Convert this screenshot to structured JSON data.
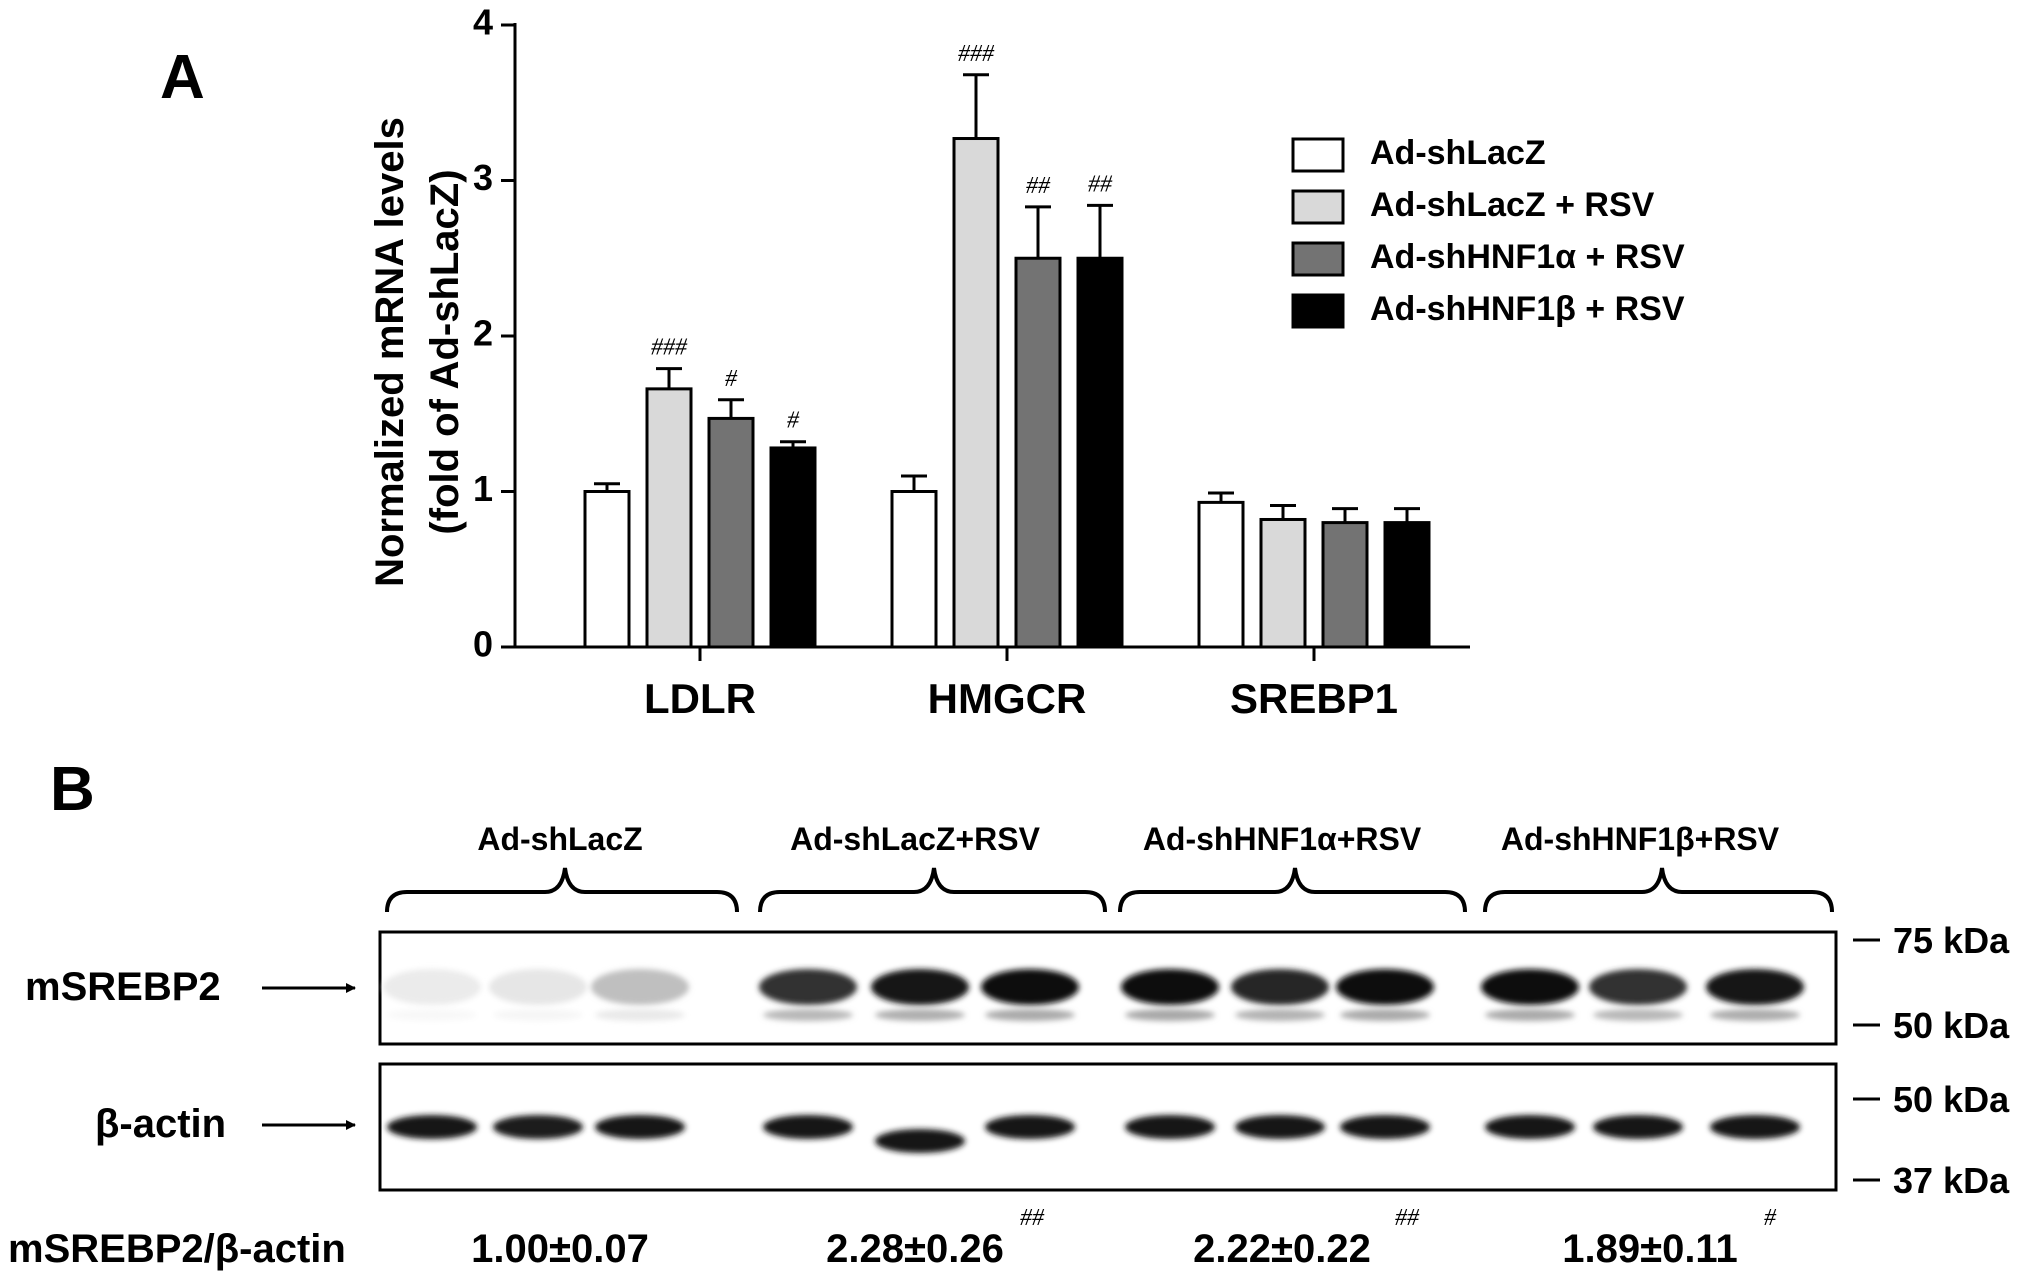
{
  "panel_a": {
    "label": "A",
    "chart_data": {
      "type": "bar",
      "ylabel_line1": "Normalized mRNA levels",
      "ylabel_line2": "(fold of Ad-shLacZ)",
      "ylim": [
        0,
        4
      ],
      "yticks": [
        "0",
        "1",
        "2",
        "3",
        "4"
      ],
      "categories": [
        "LDLR",
        "HMGCR",
        "SREBP1"
      ],
      "legend_position": "top-right",
      "series": [
        {
          "name": "Ad-shLacZ",
          "color": "#ffffff",
          "values": [
            1.0,
            1.0,
            0.93
          ],
          "errors": [
            0.05,
            0.1,
            0.06
          ],
          "annotations": [
            "",
            "",
            ""
          ]
        },
        {
          "name": "Ad-shLacZ + RSV",
          "color": "#d9d9d9",
          "values": [
            1.66,
            3.27,
            0.82
          ],
          "errors": [
            0.13,
            0.41,
            0.09
          ],
          "annotations": [
            "###",
            "###",
            ""
          ]
        },
        {
          "name": "Ad-shHNF1α + RSV",
          "color": "#737373",
          "values": [
            1.47,
            2.5,
            0.8
          ],
          "errors": [
            0.12,
            0.33,
            0.09
          ],
          "annotations": [
            "#",
            "##",
            ""
          ]
        },
        {
          "name": "Ad-shHNF1β + RSV",
          "color": "#000000",
          "values": [
            1.28,
            2.5,
            0.8
          ],
          "errors": [
            0.04,
            0.34,
            0.09
          ],
          "annotations": [
            "#",
            "##",
            ""
          ]
        }
      ]
    }
  },
  "panel_b": {
    "label": "B",
    "groups": [
      "Ad-shLacZ",
      "Ad-shLacZ+RSV",
      "Ad-shHNF1α+RSV",
      "Ad-shHNF1β+RSV"
    ],
    "blots": [
      {
        "name": "mSREBP2",
        "band_darkness": [
          0.08,
          0.1,
          0.25,
          0.8,
          0.9,
          0.95,
          0.97,
          0.85,
          0.95,
          0.95,
          0.8,
          0.92
        ]
      },
      {
        "name": "β-actin",
        "band_darkness": [
          0.9,
          0.88,
          0.9,
          0.9,
          0.9,
          0.9,
          0.9,
          0.9,
          0.9,
          0.9,
          0.9,
          0.9
        ]
      }
    ],
    "markers": [
      {
        "label": "75 kDa"
      },
      {
        "label": "50 kDa"
      },
      {
        "label": "50 kDa"
      },
      {
        "label": "37 kDa"
      }
    ],
    "ratio_label": "mSREBP2/β-actin",
    "ratios": [
      {
        "value": "1.00±0.07",
        "sig": ""
      },
      {
        "value": "2.28±0.26",
        "sig": "##"
      },
      {
        "value": "2.22±0.22",
        "sig": "##"
      },
      {
        "value": "1.89±0.11",
        "sig": "#"
      }
    ]
  }
}
